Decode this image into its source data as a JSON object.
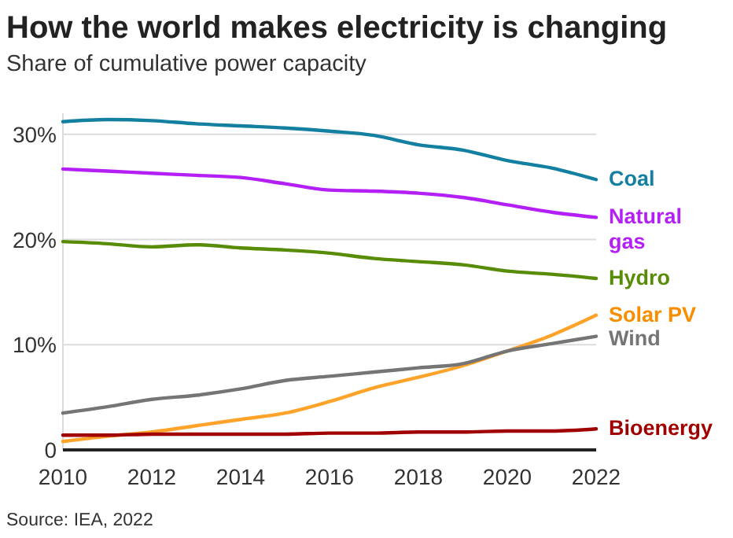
{
  "chart_data": {
    "type": "line",
    "title": "How the world makes electricity is changing",
    "subtitle": "Share of cumulative power capacity",
    "annotations": [
      "Source: IEA, 2022"
    ],
    "x": [
      2010,
      2011,
      2012,
      2013,
      2014,
      2015,
      2016,
      2017,
      2018,
      2019,
      2020,
      2021,
      2022
    ],
    "xlim": [
      2010,
      2022
    ],
    "xticks": [
      2010,
      2012,
      2014,
      2016,
      2018,
      2020,
      2022
    ],
    "ylim": [
      0,
      32
    ],
    "yticks": [
      {
        "value": 0,
        "label": "0"
      },
      {
        "value": 10,
        "label": "10%"
      },
      {
        "value": 20,
        "label": "20%"
      },
      {
        "value": 30,
        "label": "30%"
      }
    ],
    "grid": "y",
    "marker": "none",
    "line_style": "solid",
    "series": [
      {
        "name": "Coal",
        "color": "#1380a1",
        "values": [
          31.2,
          31.4,
          31.3,
          31.0,
          30.8,
          30.6,
          30.3,
          29.9,
          29.0,
          28.5,
          27.5,
          26.8,
          25.7
        ]
      },
      {
        "name": "Natural gas",
        "color": "#b31ff5",
        "values": [
          26.7,
          26.5,
          26.3,
          26.1,
          25.9,
          25.3,
          24.7,
          24.6,
          24.4,
          24.0,
          23.3,
          22.6,
          22.1
        ]
      },
      {
        "name": "Hydro",
        "color": "#588c07",
        "values": [
          19.8,
          19.6,
          19.3,
          19.5,
          19.2,
          19.0,
          18.7,
          18.2,
          17.9,
          17.6,
          17.0,
          16.7,
          16.3
        ]
      },
      {
        "name": "Solar PV",
        "color": "#ffa32a",
        "values": [
          0.8,
          1.3,
          1.7,
          2.3,
          2.9,
          3.5,
          4.6,
          5.9,
          6.9,
          8.0,
          9.4,
          10.9,
          12.8
        ]
      },
      {
        "name": "Wind",
        "color": "#757575",
        "values": [
          3.5,
          4.1,
          4.8,
          5.2,
          5.8,
          6.6,
          7.0,
          7.4,
          7.8,
          8.2,
          9.4,
          10.1,
          10.8
        ]
      },
      {
        "name": "Bioenergy",
        "color": "#a00000",
        "values": [
          1.4,
          1.4,
          1.5,
          1.5,
          1.5,
          1.5,
          1.6,
          1.6,
          1.7,
          1.7,
          1.8,
          1.8,
          2.0
        ]
      }
    ]
  }
}
